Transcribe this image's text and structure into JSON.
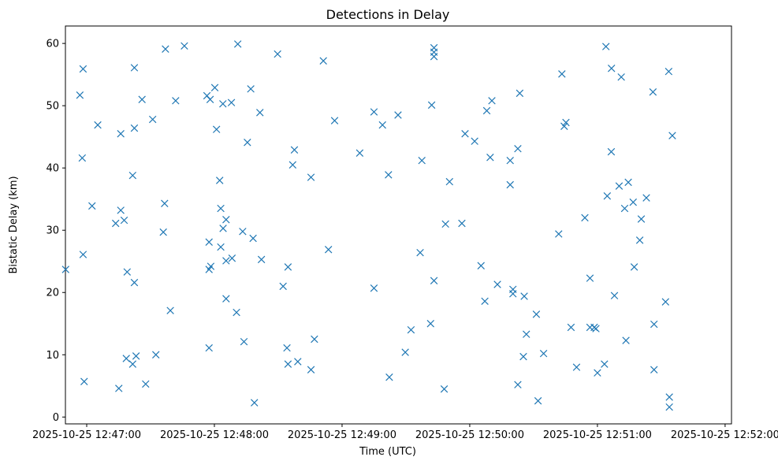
{
  "chart_data": {
    "type": "scatter",
    "title": "Detections in Delay",
    "xlabel": "Time (UTC)",
    "ylabel": "Bistatic Delay (km)",
    "x_unit": "time",
    "xlim": [
      "2025-10-25T12:46:50",
      "2025-10-25T12:52:03"
    ],
    "ylim": [
      -1.1,
      62.8
    ],
    "x_ticks": [
      "2025-10-25 12:47:00",
      "2025-10-25 12:48:00",
      "2025-10-25 12:49:00",
      "2025-10-25 12:50:00",
      "2025-10-25 12:51:00",
      "2025-10-25 12:52:00"
    ],
    "y_ticks": [
      0,
      10,
      20,
      30,
      40,
      50,
      60
    ],
    "grid": false,
    "legend": null,
    "marker": "x",
    "color": "#1f77b4",
    "points": [
      {
        "x": "12:46:50.1",
        "y": 23.7
      },
      {
        "x": "12:46:56.8",
        "y": 51.7
      },
      {
        "x": "12:46:57.9",
        "y": 41.6
      },
      {
        "x": "12:46:58.3",
        "y": 55.9
      },
      {
        "x": "12:46:58.3",
        "y": 26.1
      },
      {
        "x": "12:46:58.8",
        "y": 5.7
      },
      {
        "x": "12:47:02.5",
        "y": 33.9
      },
      {
        "x": "12:47:05.2",
        "y": 46.9
      },
      {
        "x": "12:47:13.6",
        "y": 31.1
      },
      {
        "x": "12:47:15.1",
        "y": 4.6
      },
      {
        "x": "12:47:16.0",
        "y": 45.5
      },
      {
        "x": "12:47:16.0",
        "y": 33.2
      },
      {
        "x": "12:47:17.6",
        "y": 31.6
      },
      {
        "x": "12:47:18.6",
        "y": 9.4
      },
      {
        "x": "12:47:19.0",
        "y": 23.3
      },
      {
        "x": "12:47:21.6",
        "y": 8.5
      },
      {
        "x": "12:47:21.6",
        "y": 38.8
      },
      {
        "x": "12:47:22.4",
        "y": 46.4
      },
      {
        "x": "12:47:22.4",
        "y": 56.1
      },
      {
        "x": "12:47:22.4",
        "y": 21.6
      },
      {
        "x": "12:47:23.2",
        "y": 9.8
      },
      {
        "x": "12:47:26.0",
        "y": 51.0
      },
      {
        "x": "12:47:27.7",
        "y": 5.3
      },
      {
        "x": "12:47:31.0",
        "y": 47.8
      },
      {
        "x": "12:47:32.5",
        "y": 10.0
      },
      {
        "x": "12:47:36.0",
        "y": 29.7
      },
      {
        "x": "12:47:36.6",
        "y": 34.3
      },
      {
        "x": "12:47:37.0",
        "y": 59.1
      },
      {
        "x": "12:47:39.3",
        "y": 17.1
      },
      {
        "x": "12:47:41.8",
        "y": 50.8
      },
      {
        "x": "12:47:45.9",
        "y": 59.6
      },
      {
        "x": "12:47:56.5",
        "y": 51.6
      },
      {
        "x": "12:47:57.5",
        "y": 23.7
      },
      {
        "x": "12:47:57.5",
        "y": 28.1
      },
      {
        "x": "12:47:57.5",
        "y": 11.1
      },
      {
        "x": "12:47:58.0",
        "y": 51.0
      },
      {
        "x": "12:47:58.3",
        "y": 24.2
      },
      {
        "x": "12:48:00.2",
        "y": 52.9
      },
      {
        "x": "12:48:01.0",
        "y": 46.2
      },
      {
        "x": "12:48:02.5",
        "y": 38.0
      },
      {
        "x": "12:48:03.0",
        "y": 27.3
      },
      {
        "x": "12:48:03.0",
        "y": 33.5
      },
      {
        "x": "12:48:04.0",
        "y": 50.3
      },
      {
        "x": "12:48:04.1",
        "y": 30.3
      },
      {
        "x": "12:48:05.5",
        "y": 31.7
      },
      {
        "x": "12:48:05.5",
        "y": 25.1
      },
      {
        "x": "12:48:05.5",
        "y": 19.0
      },
      {
        "x": "12:48:08.0",
        "y": 50.5
      },
      {
        "x": "12:48:08.3",
        "y": 25.5
      },
      {
        "x": "12:48:10.4",
        "y": 16.8
      },
      {
        "x": "12:48:11.0",
        "y": 59.9
      },
      {
        "x": "12:48:13.3",
        "y": 29.8
      },
      {
        "x": "12:48:13.9",
        "y": 12.1
      },
      {
        "x": "12:48:15.5",
        "y": 44.1
      },
      {
        "x": "12:48:17.1",
        "y": 52.7
      },
      {
        "x": "12:48:18.2",
        "y": 28.7
      },
      {
        "x": "12:48:18.8",
        "y": 2.3
      },
      {
        "x": "12:48:21.4",
        "y": 48.9
      },
      {
        "x": "12:48:22.1",
        "y": 25.3
      },
      {
        "x": "12:48:29.7",
        "y": 58.3
      },
      {
        "x": "12:48:32.3",
        "y": 21.0
      },
      {
        "x": "12:48:34.1",
        "y": 11.1
      },
      {
        "x": "12:48:34.6",
        "y": 24.1
      },
      {
        "x": "12:48:34.6",
        "y": 8.5
      },
      {
        "x": "12:48:36.8",
        "y": 40.5
      },
      {
        "x": "12:48:37.6",
        "y": 42.9
      },
      {
        "x": "12:48:39.2",
        "y": 8.9
      },
      {
        "x": "12:48:45.4",
        "y": 7.6
      },
      {
        "x": "12:48:45.4",
        "y": 38.5
      },
      {
        "x": "12:48:47.0",
        "y": 12.5
      },
      {
        "x": "12:48:51.2",
        "y": 57.2
      },
      {
        "x": "12:48:53.6",
        "y": 26.9
      },
      {
        "x": "12:48:56.5",
        "y": 47.6
      },
      {
        "x": "12:49:08.3",
        "y": 42.4
      },
      {
        "x": "12:49:15.0",
        "y": 49.0
      },
      {
        "x": "12:49:15.0",
        "y": 20.7
      },
      {
        "x": "12:49:19.0",
        "y": 46.9
      },
      {
        "x": "12:49:21.8",
        "y": 38.9
      },
      {
        "x": "12:49:22.2",
        "y": 6.4
      },
      {
        "x": "12:49:26.3",
        "y": 48.5
      },
      {
        "x": "12:49:29.7",
        "y": 10.4
      },
      {
        "x": "12:49:32.4",
        "y": 14.0
      },
      {
        "x": "12:49:36.7",
        "y": 26.4
      },
      {
        "x": "12:49:37.5",
        "y": 41.2
      },
      {
        "x": "12:49:41.6",
        "y": 15.0
      },
      {
        "x": "12:49:42.1",
        "y": 50.1
      },
      {
        "x": "12:49:43.2",
        "y": 21.9
      },
      {
        "x": "12:49:43.2",
        "y": 57.9
      },
      {
        "x": "12:49:43.2",
        "y": 58.6
      },
      {
        "x": "12:49:43.2",
        "y": 59.3
      },
      {
        "x": "12:49:48.0",
        "y": 4.5
      },
      {
        "x": "12:49:48.6",
        "y": 31.0
      },
      {
        "x": "12:49:50.5",
        "y": 37.8
      },
      {
        "x": "12:49:56.3",
        "y": 31.1
      },
      {
        "x": "12:49:57.8",
        "y": 45.5
      },
      {
        "x": "12:50:02.3",
        "y": 44.3
      },
      {
        "x": "12:50:05.3",
        "y": 24.3
      },
      {
        "x": "12:50:07.1",
        "y": 18.6
      },
      {
        "x": "12:50:08.0",
        "y": 49.2
      },
      {
        "x": "12:50:09.6",
        "y": 41.7
      },
      {
        "x": "12:50:10.4",
        "y": 50.8
      },
      {
        "x": "12:50:13.0",
        "y": 21.3
      },
      {
        "x": "12:50:19.0",
        "y": 41.2
      },
      {
        "x": "12:50:19.0",
        "y": 37.3
      },
      {
        "x": "12:50:20.3",
        "y": 20.5
      },
      {
        "x": "12:50:20.3",
        "y": 19.8
      },
      {
        "x": "12:50:22.6",
        "y": 5.2
      },
      {
        "x": "12:50:22.6",
        "y": 43.1
      },
      {
        "x": "12:50:23.5",
        "y": 52.0
      },
      {
        "x": "12:50:25.2",
        "y": 9.7
      },
      {
        "x": "12:50:25.6",
        "y": 19.4
      },
      {
        "x": "12:50:26.6",
        "y": 13.3
      },
      {
        "x": "12:50:31.3",
        "y": 16.5
      },
      {
        "x": "12:50:32.1",
        "y": 2.6
      },
      {
        "x": "12:50:34.7",
        "y": 10.2
      },
      {
        "x": "12:50:41.8",
        "y": 29.4
      },
      {
        "x": "12:50:43.3",
        "y": 55.1
      },
      {
        "x": "12:50:44.4",
        "y": 46.7
      },
      {
        "x": "12:50:45.2",
        "y": 47.3
      },
      {
        "x": "12:50:47.6",
        "y": 14.4
      },
      {
        "x": "12:50:50.2",
        "y": 8.0
      },
      {
        "x": "12:50:54.1",
        "y": 32.0
      },
      {
        "x": "12:50:56.5",
        "y": 22.3
      },
      {
        "x": "12:50:56.5",
        "y": 14.4
      },
      {
        "x": "12:50:58.5",
        "y": 14.4
      },
      {
        "x": "12:50:59.3",
        "y": 14.2
      },
      {
        "x": "12:51:00.0",
        "y": 7.1
      },
      {
        "x": "12:51:03.3",
        "y": 8.5
      },
      {
        "x": "12:51:04.0",
        "y": 59.5
      },
      {
        "x": "12:51:04.6",
        "y": 35.5
      },
      {
        "x": "12:51:06.5",
        "y": 42.6
      },
      {
        "x": "12:51:06.6",
        "y": 56.0
      },
      {
        "x": "12:51:08.0",
        "y": 19.5
      },
      {
        "x": "12:51:10.2",
        "y": 37.1
      },
      {
        "x": "12:51:11.2",
        "y": 54.6
      },
      {
        "x": "12:51:12.8",
        "y": 33.5
      },
      {
        "x": "12:51:13.4",
        "y": 12.3
      },
      {
        "x": "12:51:14.5",
        "y": 37.7
      },
      {
        "x": "12:51:16.8",
        "y": 34.5
      },
      {
        "x": "12:51:17.3",
        "y": 24.1
      },
      {
        "x": "12:51:19.9",
        "y": 28.4
      },
      {
        "x": "12:51:20.6",
        "y": 31.8
      },
      {
        "x": "12:51:23.0",
        "y": 35.2
      },
      {
        "x": "12:51:26.1",
        "y": 52.2
      },
      {
        "x": "12:51:26.6",
        "y": 7.6
      },
      {
        "x": "12:51:26.6",
        "y": 14.9
      },
      {
        "x": "12:51:32.0",
        "y": 18.5
      },
      {
        "x": "12:51:33.5",
        "y": 55.5
      },
      {
        "x": "12:51:33.8",
        "y": 3.2
      },
      {
        "x": "12:51:33.8",
        "y": 1.6
      },
      {
        "x": "12:51:35.2",
        "y": 45.2
      }
    ]
  }
}
